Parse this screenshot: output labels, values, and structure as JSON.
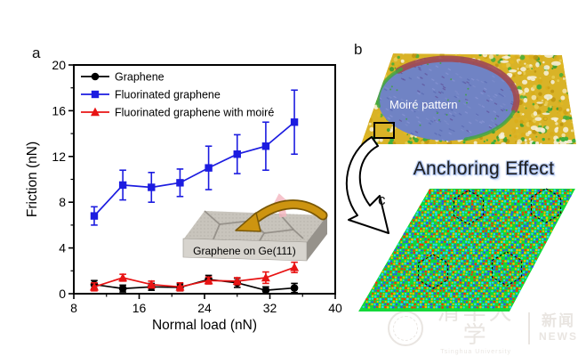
{
  "figure": {
    "panels": {
      "a": "a",
      "b": "b",
      "c": "c"
    }
  },
  "chart_data": {
    "type": "line",
    "title": "",
    "xlabel": "Normal load (nN)",
    "ylabel": "Friction (nN)",
    "xlim": [
      8,
      40
    ],
    "ylim": [
      0,
      20
    ],
    "xticks": [
      8,
      16,
      24,
      32,
      40
    ],
    "yticks": [
      0,
      4,
      8,
      12,
      16,
      20
    ],
    "x_minor_ticks": [
      12,
      20,
      28,
      36
    ],
    "y_minor_ticks": [
      2,
      6,
      10,
      14,
      18
    ],
    "grid": false,
    "legend_position": "top-left inside",
    "x": [
      10.5,
      14,
      17.5,
      21,
      24.5,
      28,
      31.5,
      35
    ],
    "series": [
      {
        "name": "Graphene",
        "marker": "circle",
        "color": "#000000",
        "values": [
          0.8,
          0.45,
          0.6,
          0.55,
          1.25,
          0.95,
          0.3,
          0.5
        ],
        "errors": [
          0.35,
          0.3,
          0.3,
          0.3,
          0.35,
          0.4,
          0.3,
          0.4
        ]
      },
      {
        "name": "Fluorinated graphene",
        "marker": "square",
        "color": "#1c1ce0",
        "values": [
          6.8,
          9.5,
          9.3,
          9.7,
          11.0,
          12.2,
          12.9,
          15.0
        ],
        "errors": [
          0.8,
          1.3,
          1.3,
          1.2,
          1.9,
          1.7,
          2.1,
          2.8
        ]
      },
      {
        "name": "Fluorinated graphene with moiré",
        "marker": "triangle",
        "color": "#e81414",
        "values": [
          0.6,
          1.4,
          0.8,
          0.6,
          1.15,
          1.1,
          1.4,
          2.3
        ],
        "errors": [
          0.35,
          0.3,
          0.3,
          0.35,
          0.3,
          0.3,
          0.5,
          0.45
        ]
      }
    ],
    "inset_caption": "Graphene on Ge(111)"
  },
  "panel_b": {
    "annotation": "Moiré pattern",
    "caption": "Anchoring Effect"
  },
  "watermark": {
    "university_cn": "清华大学",
    "university_en": "Tsinghua University",
    "news_cn": "新闻",
    "news_en": "NEWS"
  },
  "palette": {
    "lattice_green": "#12d83a",
    "afm_dome_blue": "#7083c4",
    "afm_terrain_yellow": "#ddb125",
    "inset_arrow_gold": "#cd9410",
    "anchoring_glow": "#9ab5ec"
  }
}
